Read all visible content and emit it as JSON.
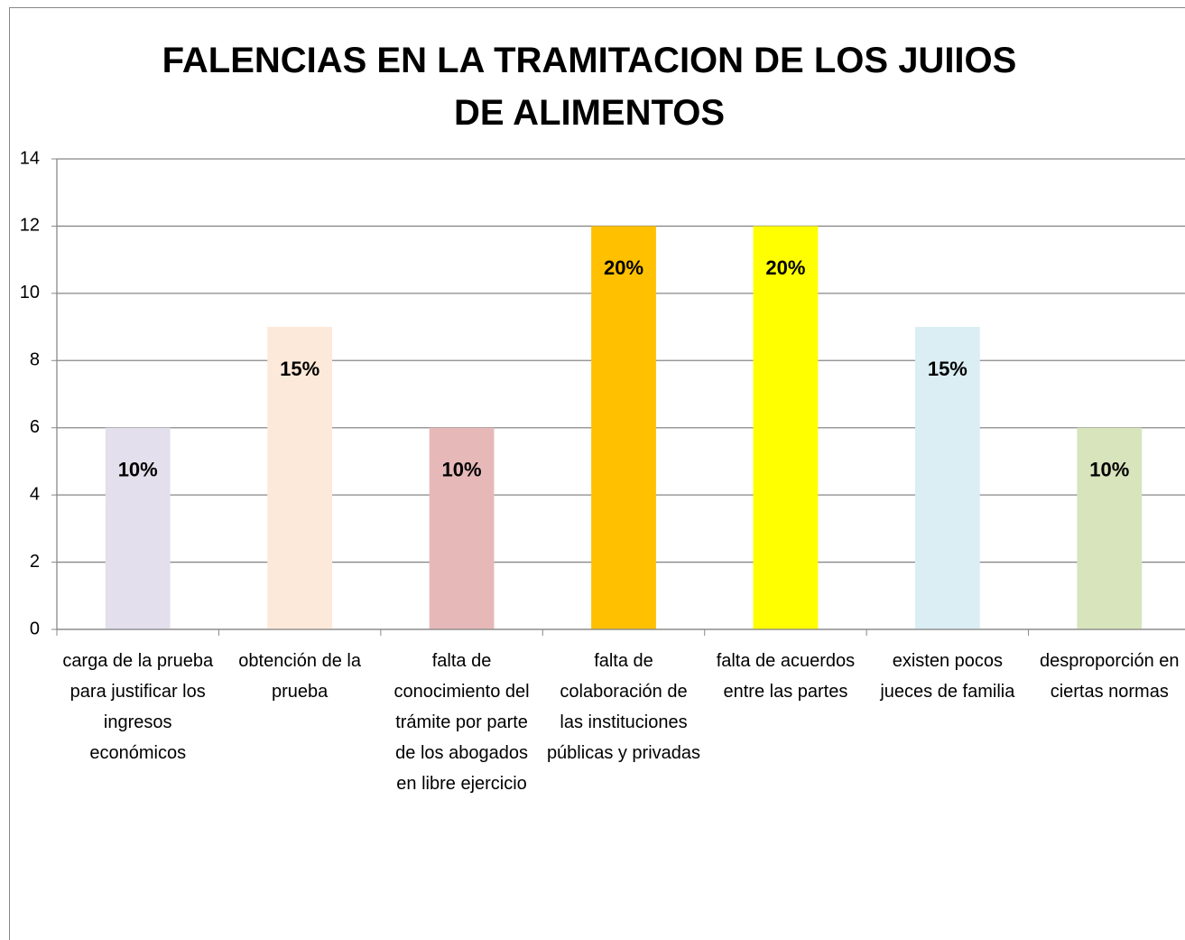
{
  "chart_data": {
    "type": "bar",
    "title": "FALENCIAS EN LA TRAMITACION DE LOS JUIIOS DE ALIMENTOS",
    "categories": [
      "carga de la prueba para justificar los ingresos económicos",
      "obtención de la prueba",
      "falta de conocimiento del trámite por parte de los abogados en libre ejercicio",
      "falta de colaboración de las instituciones públicas y privadas",
      "falta de acuerdos entre las partes",
      "existen pocos jueces de familia",
      "desproporción en ciertas normas"
    ],
    "values": [
      6,
      9,
      6,
      12,
      12,
      9,
      6
    ],
    "percent_labels": [
      "10%",
      "15%",
      "10%",
      "20%",
      "20%",
      "15%",
      "10%"
    ],
    "colors": [
      "#e4dfec",
      "#fde9d9",
      "#e6b9b8",
      "#ffc000",
      "#ffff00",
      "#daeef3",
      "#d7e4bc"
    ],
    "ylim": [
      0,
      14
    ],
    "yticks": [
      0,
      2,
      4,
      6,
      8,
      10,
      12,
      14
    ],
    "grid": true
  }
}
